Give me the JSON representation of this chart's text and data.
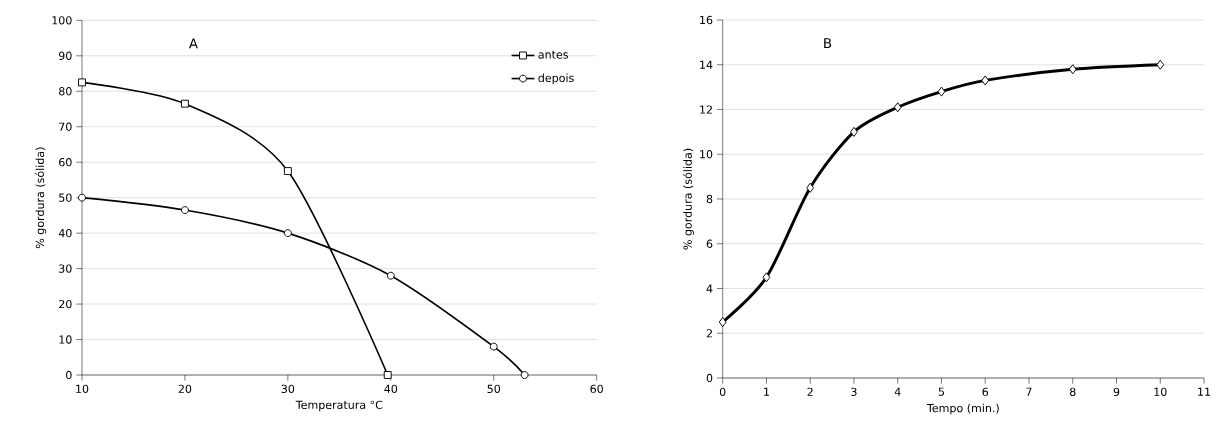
{
  "chart_data": [
    {
      "type": "line",
      "xlabel": "Temperatura °C",
      "ylabel": "% gordura (sólida)",
      "annotations": [
        "A"
      ],
      "xlim": [
        10,
        60
      ],
      "xticks": [
        10,
        20,
        30,
        40,
        50,
        60
      ],
      "ylim": [
        0,
        100
      ],
      "yticks": [
        0,
        10,
        20,
        30,
        40,
        50,
        60,
        70,
        80,
        90,
        100
      ],
      "grid": "y",
      "legend": "top right",
      "line_style": "solid",
      "series": [
        {
          "name": "antes",
          "color": "#000000",
          "marker": "square",
          "x": [
            10,
            20,
            30,
            39.7
          ],
          "values": [
            82.5,
            76.5,
            57.5,
            0
          ]
        },
        {
          "name": "depois",
          "color": "#000000",
          "marker": "circle",
          "x": [
            10,
            20,
            30,
            40,
            50,
            53
          ],
          "values": [
            50,
            46.5,
            40,
            28,
            8,
            0
          ]
        }
      ]
    },
    {
      "type": "line",
      "xlabel": "Tempo  (min.)",
      "ylabel": "% gordura (sólida)",
      "annotations": [
        "B"
      ],
      "xlim": [
        0,
        11
      ],
      "xticks": [
        0,
        1,
        2,
        3,
        4,
        5,
        6,
        7,
        8,
        9,
        10,
        11
      ],
      "ylim": [
        0,
        16
      ],
      "yticks": [
        0,
        2,
        4,
        6,
        8,
        10,
        12,
        14,
        16
      ],
      "grid": "y",
      "marker": "diamond",
      "line_style": "solid",
      "series": [
        {
          "color": "#000000",
          "x": [
            0,
            1,
            2,
            3,
            4,
            5,
            6,
            8,
            10
          ],
          "values": [
            2.5,
            4.5,
            8.5,
            11,
            12.1,
            12.8,
            13.3,
            13.8,
            14
          ]
        }
      ]
    }
  ]
}
